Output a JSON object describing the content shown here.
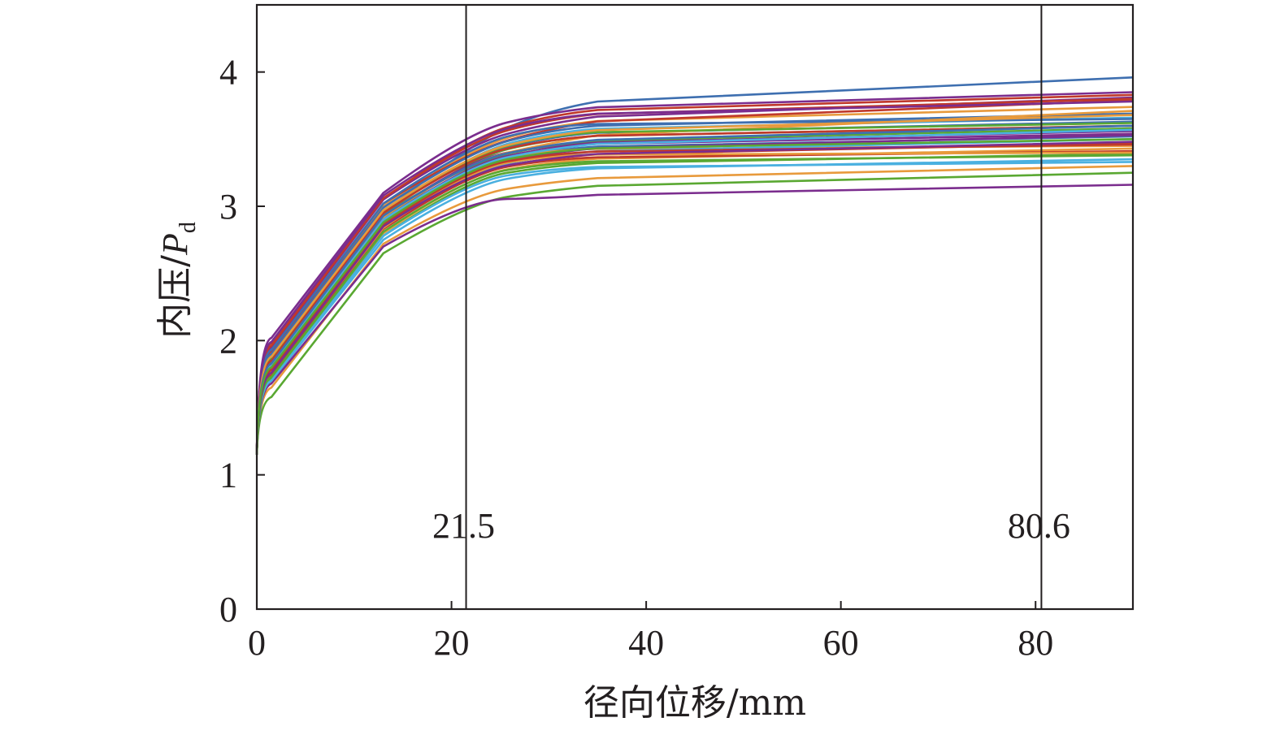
{
  "chart_data": {
    "type": "line",
    "xlabel": "径向位移/mm",
    "ylabel_main": "内压/",
    "ylabel_var": "P",
    "ylabel_sub": "d",
    "xlim": [
      0,
      90
    ],
    "ylim": [
      0,
      4.5
    ],
    "xticks": [
      0,
      20,
      40,
      60,
      80
    ],
    "yticks": [
      0,
      1,
      2,
      3,
      4
    ],
    "xtick_labels": [
      "0",
      "20",
      "40",
      "60",
      "80"
    ],
    "ytick_labels": [
      "0",
      "1",
      "2",
      "3",
      "4"
    ],
    "grid": false,
    "legend": "none",
    "vlines": [
      {
        "x": 21.5,
        "label": "21.5"
      },
      {
        "x": 80.6,
        "label": "80.6"
      }
    ],
    "curve_model": {
      "x_points": [
        0,
        1.5,
        13,
        21.5,
        30,
        90
      ],
      "notes_only_for_script": false
    },
    "series": [
      {
        "color": "#3e6fb0",
        "values": [
          1.15,
          1.95,
          2.95,
          3.45,
          3.72,
          3.96
        ]
      },
      {
        "color": "#7b2d8e",
        "values": [
          1.15,
          2.02,
          3.1,
          3.55,
          3.7,
          3.85
        ]
      },
      {
        "color": "#c0392b",
        "values": [
          1.15,
          1.98,
          3.05,
          3.5,
          3.68,
          3.83
        ]
      },
      {
        "color": "#e89a3c",
        "values": [
          1.15,
          1.9,
          3.0,
          3.42,
          3.6,
          3.74
        ]
      },
      {
        "color": "#4ab0e0",
        "values": [
          1.15,
          1.85,
          2.95,
          3.38,
          3.55,
          3.66
        ]
      },
      {
        "color": "#5aa832",
        "values": [
          1.15,
          1.8,
          2.9,
          3.35,
          3.5,
          3.6
        ]
      },
      {
        "color": "#7b2d8e",
        "values": [
          1.15,
          1.88,
          2.92,
          3.35,
          3.45,
          3.56
        ]
      },
      {
        "color": "#3e6fb0",
        "values": [
          1.15,
          1.82,
          2.88,
          3.3,
          3.42,
          3.52
        ]
      },
      {
        "color": "#c0392b",
        "values": [
          1.15,
          1.78,
          2.85,
          3.25,
          3.36,
          3.47
        ]
      },
      {
        "color": "#e89a3c",
        "values": [
          1.15,
          1.75,
          2.8,
          3.22,
          3.33,
          3.43
        ]
      },
      {
        "color": "#5aa832",
        "values": [
          1.15,
          1.72,
          2.78,
          3.2,
          3.3,
          3.39
        ]
      },
      {
        "color": "#4ab0e0",
        "values": [
          1.15,
          1.7,
          2.75,
          3.15,
          3.26,
          3.35
        ]
      },
      {
        "color": "#e89a3c",
        "values": [
          1.15,
          1.65,
          2.72,
          3.08,
          3.18,
          3.3
        ]
      },
      {
        "color": "#5aa832",
        "values": [
          1.15,
          1.58,
          2.65,
          3.02,
          3.12,
          3.25
        ]
      },
      {
        "color": "#7b2d8e",
        "values": [
          1.15,
          1.68,
          2.7,
          3.05,
          3.06,
          3.16
        ]
      },
      {
        "color": "#c0392b",
        "values": [
          1.15,
          1.92,
          3.02,
          3.4,
          3.58,
          3.79
        ]
      },
      {
        "color": "#3e6fb0",
        "values": [
          1.15,
          1.86,
          2.97,
          3.36,
          3.52,
          3.63
        ]
      },
      {
        "color": "#7b2d8e",
        "values": [
          1.15,
          1.95,
          3.05,
          3.46,
          3.62,
          3.81
        ]
      },
      {
        "color": "#5aa832",
        "values": [
          1.15,
          1.84,
          2.94,
          3.32,
          3.46,
          3.58
        ]
      },
      {
        "color": "#e89a3c",
        "values": [
          1.15,
          1.8,
          2.9,
          3.3,
          3.42,
          3.45
        ]
      },
      {
        "color": "#4ab0e0",
        "values": [
          1.15,
          1.76,
          2.86,
          3.26,
          3.38,
          3.5
        ]
      },
      {
        "color": "#c0392b",
        "values": [
          1.15,
          1.74,
          2.83,
          3.24,
          3.35,
          3.41
        ]
      },
      {
        "color": "#3e6fb0",
        "values": [
          1.15,
          1.9,
          2.99,
          3.4,
          3.57,
          3.69
        ]
      },
      {
        "color": "#7b2d8e",
        "values": [
          1.15,
          1.79,
          2.87,
          3.28,
          3.4,
          3.53
        ]
      },
      {
        "color": "#e89a3c",
        "values": [
          1.15,
          1.83,
          2.92,
          3.33,
          3.47,
          3.71
        ]
      },
      {
        "color": "#5aa832",
        "values": [
          1.15,
          1.87,
          2.96,
          3.37,
          3.53,
          3.62
        ]
      },
      {
        "color": "#c0392b",
        "values": [
          1.15,
          1.96,
          3.06,
          3.48,
          3.65,
          3.8
        ]
      },
      {
        "color": "#4ab0e0",
        "values": [
          1.15,
          1.7,
          2.78,
          3.18,
          3.28,
          3.33
        ]
      },
      {
        "color": "#7b2d8e",
        "values": [
          1.15,
          1.82,
          2.9,
          3.31,
          3.44,
          3.54
        ]
      },
      {
        "color": "#e89a3c",
        "values": [
          1.15,
          1.77,
          2.84,
          3.27,
          3.38,
          3.4
        ]
      },
      {
        "color": "#3e6fb0",
        "values": [
          1.15,
          1.93,
          3.02,
          3.44,
          3.6,
          3.65
        ]
      },
      {
        "color": "#c0392b",
        "values": [
          1.15,
          1.85,
          2.95,
          3.36,
          3.5,
          3.6
        ]
      },
      {
        "color": "#5aa832",
        "values": [
          1.15,
          1.73,
          2.81,
          3.22,
          3.32,
          3.38
        ]
      },
      {
        "color": "#7b2d8e",
        "values": [
          1.15,
          1.99,
          3.08,
          3.5,
          3.66,
          3.78
        ]
      },
      {
        "color": "#4ab0e0",
        "values": [
          1.15,
          1.81,
          2.9,
          3.3,
          3.43,
          3.57
        ]
      },
      {
        "color": "#e89a3c",
        "values": [
          1.15,
          1.88,
          2.97,
          3.38,
          3.53,
          3.68
        ]
      },
      {
        "color": "#c0392b",
        "values": [
          1.15,
          1.78,
          2.86,
          3.28,
          3.39,
          3.46
        ]
      },
      {
        "color": "#3e6fb0",
        "values": [
          1.15,
          1.83,
          2.93,
          3.33,
          3.46,
          3.6
        ]
      },
      {
        "color": "#7b2d8e",
        "values": [
          1.15,
          1.76,
          2.85,
          3.25,
          3.36,
          3.48
        ]
      },
      {
        "color": "#5aa832",
        "values": [
          1.15,
          1.8,
          2.88,
          3.29,
          3.41,
          3.5
        ]
      }
    ]
  }
}
